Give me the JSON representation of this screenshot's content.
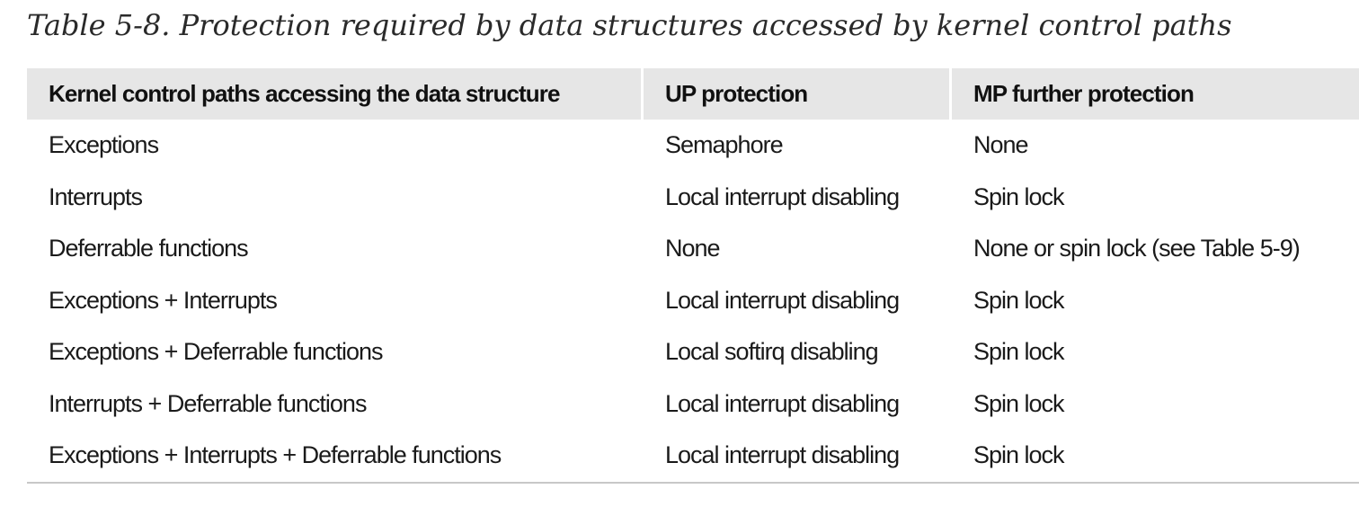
{
  "caption": "Table 5-8. Protection required by data structures accessed by kernel control paths",
  "table": {
    "headers": [
      "Kernel control paths accessing the data structure",
      "UP protection",
      "MP further protection"
    ],
    "rows": [
      [
        "Exceptions",
        "Semaphore",
        "None"
      ],
      [
        "Interrupts",
        "Local interrupt disabling",
        "Spin lock"
      ],
      [
        "Deferrable functions",
        "None",
        "None or spin lock (see Table 5-9)"
      ],
      [
        "Exceptions + Interrupts",
        "Local interrupt disabling",
        "Spin lock"
      ],
      [
        "Exceptions + Deferrable functions",
        "Local softirq disabling",
        "Spin lock"
      ],
      [
        "Interrupts + Deferrable functions",
        "Local interrupt disabling",
        "Spin lock"
      ],
      [
        "Exceptions + Interrupts + Deferrable functions",
        "Local interrupt disabling",
        "Spin lock"
      ]
    ]
  }
}
